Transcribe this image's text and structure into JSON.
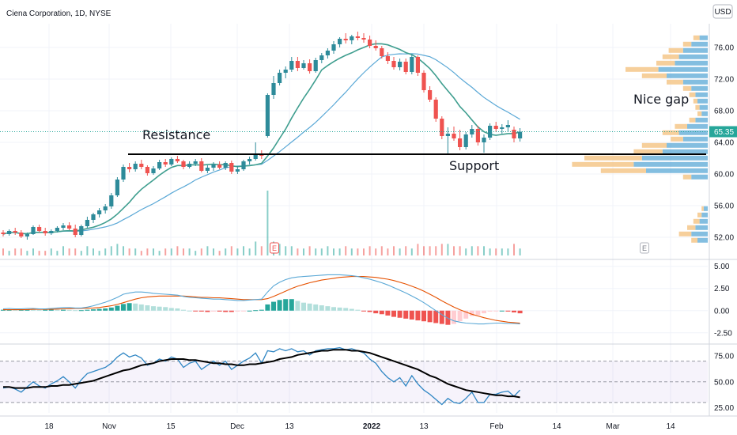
{
  "header": {
    "title": "Ciena Corporation, 1D, NYSE",
    "currency": "USD"
  },
  "colors": {
    "up": "#26a69a",
    "up_candle": "#2e8b9a",
    "down": "#ef5350",
    "ma_fast": "#3f9e8f",
    "ma_slow": "#5aa8d6",
    "macd_line": "#5aa8d6",
    "signal_line": "#e65100",
    "rsi_line": "#2f86c4",
    "rsi_ma": "#000000",
    "vp_up": "#5aa8d6",
    "vp_down": "#f5c78a",
    "grid": "#f0f3fa",
    "panel_sep": "#d1d4dc"
  },
  "annotations": {
    "resistance": "Resistance",
    "support": "Support",
    "nice_gap": "Nice gap"
  },
  "earnings_marker": "E",
  "date_axis": [
    "18",
    "Nov",
    "15",
    "Dec",
    "13",
    "2022",
    "13",
    "Feb",
    "14",
    "Mar",
    "14"
  ],
  "chart_data": [
    {
      "type": "candlestick",
      "title": "Ciena Corporation, 1D, NYSE",
      "ylabel": "USD",
      "ylim": [
        49.5,
        79
      ],
      "yticks": [
        "76.00",
        "72.00",
        "68.00",
        "64.00",
        "60.00",
        "56.00",
        "52.00"
      ],
      "last_price": "65.35",
      "support_resistance_level": 62.5,
      "volume_profile": true,
      "candles": [
        [
          52.6,
          52.9,
          52.1,
          52.4
        ],
        [
          52.4,
          53.0,
          52.2,
          52.8
        ],
        [
          52.8,
          53.2,
          52.3,
          52.6
        ],
        [
          52.6,
          52.9,
          51.9,
          52.1
        ],
        [
          52.1,
          52.6,
          51.7,
          52.4
        ],
        [
          52.4,
          53.5,
          52.3,
          53.3
        ],
        [
          53.3,
          53.6,
          52.6,
          52.8
        ],
        [
          52.8,
          53.2,
          52.2,
          52.5
        ],
        [
          52.5,
          53.0,
          52.3,
          52.8
        ],
        [
          52.8,
          53.4,
          52.6,
          53.2
        ],
        [
          53.2,
          53.8,
          52.9,
          53.5
        ],
        [
          53.5,
          53.9,
          52.9,
          53.1
        ],
        [
          53.1,
          53.6,
          52.0,
          52.3
        ],
        [
          52.3,
          53.6,
          52.1,
          53.4
        ],
        [
          53.4,
          54.6,
          53.2,
          54.2
        ],
        [
          54.2,
          55.1,
          53.8,
          54.9
        ],
        [
          54.9,
          55.7,
          54.5,
          55.4
        ],
        [
          55.4,
          56.2,
          55.0,
          55.9
        ],
        [
          55.9,
          57.6,
          55.6,
          57.3
        ],
        [
          57.3,
          59.6,
          57.1,
          59.3
        ],
        [
          59.3,
          61.2,
          59.0,
          60.9
        ],
        [
          60.9,
          61.4,
          60.2,
          60.6
        ],
        [
          60.6,
          61.6,
          60.3,
          61.3
        ],
        [
          61.3,
          61.8,
          60.6,
          60.9
        ],
        [
          60.9,
          61.1,
          59.8,
          60.1
        ],
        [
          60.1,
          61.0,
          59.9,
          60.7
        ],
        [
          60.7,
          61.8,
          60.5,
          61.5
        ],
        [
          61.5,
          61.9,
          60.9,
          61.2
        ],
        [
          61.2,
          62.1,
          61.0,
          61.9
        ],
        [
          61.9,
          62.3,
          61.4,
          61.6
        ],
        [
          61.6,
          61.8,
          60.6,
          60.9
        ],
        [
          60.9,
          61.6,
          60.7,
          61.3
        ],
        [
          61.3,
          61.9,
          61.0,
          61.6
        ],
        [
          61.6,
          62.0,
          60.2,
          60.4
        ],
        [
          60.4,
          61.1,
          60.1,
          60.8
        ],
        [
          60.8,
          61.5,
          60.4,
          61.2
        ],
        [
          61.2,
          61.6,
          60.6,
          60.8
        ],
        [
          60.8,
          61.6,
          60.5,
          61.4
        ],
        [
          61.4,
          61.7,
          60.0,
          60.3
        ],
        [
          60.3,
          61.0,
          60.0,
          60.6
        ],
        [
          60.6,
          61.8,
          60.4,
          61.6
        ],
        [
          61.6,
          62.2,
          61.2,
          61.9
        ],
        [
          61.9,
          64.0,
          61.7,
          62.6
        ],
        [
          62.6,
          63.0,
          61.9,
          62.3
        ],
        [
          64.8,
          70.2,
          64.6,
          70.0
        ],
        [
          70.0,
          72.4,
          69.5,
          71.5
        ],
        [
          71.5,
          73.2,
          71.2,
          72.8
        ],
        [
          72.8,
          73.6,
          72.1,
          73.2
        ],
        [
          73.2,
          74.8,
          72.9,
          74.3
        ],
        [
          74.3,
          74.8,
          73.0,
          73.4
        ],
        [
          73.4,
          74.4,
          73.2,
          74.0
        ],
        [
          74.0,
          74.5,
          72.7,
          73.0
        ],
        [
          73.0,
          74.7,
          72.8,
          74.4
        ],
        [
          74.4,
          75.3,
          74.0,
          75.0
        ],
        [
          75.0,
          75.9,
          74.6,
          75.6
        ],
        [
          75.6,
          76.8,
          75.2,
          76.4
        ],
        [
          76.4,
          77.3,
          76.0,
          77.1
        ],
        [
          77.1,
          77.8,
          76.5,
          76.9
        ],
        [
          76.9,
          77.6,
          76.4,
          77.4
        ],
        [
          77.4,
          78.0,
          76.9,
          77.2
        ],
        [
          77.2,
          77.8,
          76.6,
          77.0
        ],
        [
          77.0,
          77.5,
          75.9,
          76.2
        ],
        [
          76.2,
          76.9,
          75.6,
          75.9
        ],
        [
          75.9,
          76.2,
          74.6,
          74.9
        ],
        [
          74.9,
          75.4,
          73.9,
          74.3
        ],
        [
          74.3,
          74.8,
          73.2,
          73.5
        ],
        [
          73.5,
          74.6,
          73.1,
          74.2
        ],
        [
          74.2,
          74.6,
          72.6,
          72.9
        ],
        [
          72.9,
          75.1,
          72.6,
          74.8
        ],
        [
          74.8,
          75.0,
          72.4,
          72.8
        ],
        [
          72.8,
          73.1,
          70.3,
          70.6
        ],
        [
          70.6,
          71.1,
          69.1,
          69.4
        ],
        [
          69.4,
          69.7,
          66.6,
          67.0
        ],
        [
          67.0,
          67.3,
          64.4,
          64.8
        ],
        [
          64.8,
          65.9,
          62.4,
          65.1
        ],
        [
          65.1,
          66.0,
          64.2,
          64.5
        ],
        [
          64.5,
          65.6,
          63.0,
          63.4
        ],
        [
          63.4,
          65.3,
          63.1,
          65.0
        ],
        [
          65.0,
          66.2,
          64.6,
          65.7
        ],
        [
          65.7,
          66.1,
          63.6,
          64.0
        ],
        [
          64.0,
          65.0,
          62.7,
          64.6
        ],
        [
          64.6,
          66.4,
          64.3,
          66.1
        ],
        [
          66.1,
          66.6,
          65.3,
          65.7
        ],
        [
          65.7,
          66.3,
          65.1,
          65.9
        ],
        [
          65.9,
          66.8,
          65.3,
          66.2
        ],
        [
          65.6,
          66.0,
          64.0,
          64.5
        ],
        [
          64.5,
          65.8,
          64.1,
          65.35
        ]
      ],
      "volume": [
        3,
        2,
        3,
        3,
        2,
        3,
        2,
        2,
        3,
        2,
        4,
        3,
        3,
        2,
        4,
        3,
        2,
        3,
        4,
        5,
        4,
        3,
        3,
        2,
        3,
        3,
        2,
        3,
        3,
        4,
        3,
        3,
        2,
        3,
        4,
        3,
        2,
        3,
        4,
        3,
        4,
        3,
        6,
        4,
        28,
        6,
        5,
        4,
        4,
        3,
        3,
        4,
        3,
        3,
        4,
        3,
        3,
        4,
        3,
        3,
        3,
        4,
        3,
        4,
        3,
        4,
        3,
        4,
        3,
        5,
        4,
        4,
        4,
        5,
        5,
        4,
        4,
        3,
        4,
        4,
        4,
        3,
        3,
        3,
        3,
        5,
        3
      ],
      "volume_profile_bins": [
        {
          "price": 77.2,
          "up": 4,
          "down": 3
        },
        {
          "price": 76.4,
          "up": 8,
          "down": 4
        },
        {
          "price": 75.6,
          "up": 12,
          "down": 7
        },
        {
          "price": 74.8,
          "up": 14,
          "down": 8
        },
        {
          "price": 74.0,
          "up": 16,
          "down": 9
        },
        {
          "price": 73.2,
          "up": 24,
          "down": 16
        },
        {
          "price": 72.4,
          "up": 20,
          "down": 12
        },
        {
          "price": 71.6,
          "up": 12,
          "down": 8
        },
        {
          "price": 70.8,
          "up": 8,
          "down": 4
        },
        {
          "price": 70.0,
          "up": 6,
          "down": 3
        },
        {
          "price": 69.2,
          "up": 5,
          "down": 2
        },
        {
          "price": 68.4,
          "up": 4,
          "down": 2
        },
        {
          "price": 67.6,
          "up": 3,
          "down": 2
        },
        {
          "price": 66.8,
          "up": 6,
          "down": 3
        },
        {
          "price": 66.0,
          "up": 10,
          "down": 6
        },
        {
          "price": 65.2,
          "up": 14,
          "down": 8
        },
        {
          "price": 64.4,
          "up": 12,
          "down": 6
        },
        {
          "price": 63.6,
          "up": 20,
          "down": 12
        },
        {
          "price": 62.8,
          "up": 22,
          "down": 14
        },
        {
          "price": 62.0,
          "up": 32,
          "down": 28
        },
        {
          "price": 61.2,
          "up": 36,
          "down": 30
        },
        {
          "price": 60.4,
          "up": 30,
          "down": 22
        },
        {
          "price": 59.6,
          "up": 8,
          "down": 4
        },
        {
          "price": 55.6,
          "up": 2,
          "down": 1
        },
        {
          "price": 54.8,
          "up": 3,
          "down": 2
        },
        {
          "price": 54.0,
          "up": 4,
          "down": 3
        },
        {
          "price": 53.2,
          "up": 6,
          "down": 4
        },
        {
          "price": 52.4,
          "up": 8,
          "down": 6
        },
        {
          "price": 51.6,
          "up": 5,
          "down": 3
        }
      ]
    },
    {
      "type": "bar",
      "subtype": "macd_histogram",
      "ylim": [
        -3.5,
        5.6
      ],
      "yticks": [
        "5.00",
        "2.50",
        "0.00",
        "-2.50"
      ],
      "histogram": [
        0.1,
        0.15,
        0.1,
        0.1,
        0.12,
        0.1,
        0.08,
        0.1,
        0.12,
        0.1,
        0.1,
        0.08,
        0.05,
        0.05,
        0.1,
        0.15,
        0.2,
        0.25,
        0.35,
        0.55,
        0.75,
        0.85,
        0.8,
        0.7,
        0.6,
        0.5,
        0.45,
        0.4,
        0.3,
        0.25,
        0.1,
        0.0,
        -0.05,
        -0.1,
        -0.15,
        -0.1,
        -0.1,
        -0.15,
        -0.15,
        -0.1,
        -0.05,
        0.0,
        0.05,
        0.1,
        0.7,
        1.0,
        1.2,
        1.3,
        1.3,
        1.1,
        0.9,
        0.8,
        0.7,
        0.6,
        0.5,
        0.4,
        0.35,
        0.3,
        0.2,
        0.1,
        -0.05,
        -0.15,
        -0.3,
        -0.4,
        -0.55,
        -0.7,
        -0.8,
        -0.9,
        -1.0,
        -1.1,
        -1.2,
        -1.3,
        -1.4,
        -1.5,
        -1.6,
        -1.5,
        -1.2,
        -0.9,
        -0.6,
        -0.5,
        -0.3,
        -0.1,
        -0.05,
        0.0,
        -0.1,
        -0.2,
        -0.3
      ],
      "macd": [
        0.2,
        0.25,
        0.2,
        0.2,
        0.25,
        0.25,
        0.2,
        0.2,
        0.25,
        0.3,
        0.35,
        0.35,
        0.3,
        0.3,
        0.4,
        0.55,
        0.75,
        0.95,
        1.2,
        1.5,
        1.85,
        2.0,
        2.1,
        2.1,
        2.05,
        1.95,
        1.9,
        1.85,
        1.8,
        1.75,
        1.6,
        1.5,
        1.45,
        1.4,
        1.35,
        1.3,
        1.3,
        1.25,
        1.2,
        1.15,
        1.15,
        1.2,
        1.25,
        1.3,
        2.1,
        2.8,
        3.2,
        3.5,
        3.7,
        3.8,
        3.85,
        3.9,
        3.95,
        4.0,
        4.05,
        4.05,
        4.05,
        4.0,
        3.95,
        3.85,
        3.7,
        3.55,
        3.35,
        3.15,
        2.9,
        2.6,
        2.3,
        2.0,
        1.65,
        1.3,
        0.9,
        0.45,
        0.0,
        -0.45,
        -0.85,
        -1.15,
        -1.3,
        -1.4,
        -1.45,
        -1.5,
        -1.5,
        -1.45,
        -1.4,
        -1.4,
        -1.45,
        -1.45,
        -1.5
      ],
      "signal": [
        0.1,
        0.1,
        0.1,
        0.1,
        0.12,
        0.15,
        0.15,
        0.15,
        0.15,
        0.18,
        0.2,
        0.22,
        0.25,
        0.25,
        0.28,
        0.3,
        0.35,
        0.45,
        0.55,
        0.7,
        0.9,
        1.1,
        1.3,
        1.45,
        1.55,
        1.6,
        1.65,
        1.65,
        1.65,
        1.65,
        1.65,
        1.6,
        1.55,
        1.5,
        1.5,
        1.45,
        1.45,
        1.4,
        1.35,
        1.3,
        1.25,
        1.25,
        1.25,
        1.25,
        1.35,
        1.6,
        1.9,
        2.2,
        2.5,
        2.75,
        2.95,
        3.15,
        3.3,
        3.45,
        3.55,
        3.65,
        3.75,
        3.8,
        3.85,
        3.85,
        3.85,
        3.8,
        3.75,
        3.65,
        3.55,
        3.4,
        3.2,
        3.0,
        2.75,
        2.5,
        2.2,
        1.85,
        1.5,
        1.1,
        0.75,
        0.4,
        0.1,
        -0.15,
        -0.4,
        -0.6,
        -0.8,
        -0.95,
        -1.1,
        -1.2,
        -1.3,
        -1.35,
        -1.4
      ]
    },
    {
      "type": "line",
      "subtype": "rsi",
      "ylim": [
        20,
        85
      ],
      "yticks": [
        "75.00",
        "50.00",
        "25.00"
      ],
      "band": [
        30,
        70
      ],
      "midline": 50,
      "rsi": [
        44,
        45,
        43,
        40,
        45,
        50,
        46,
        44,
        48,
        51,
        55,
        50,
        44,
        52,
        58,
        60,
        62,
        64,
        68,
        74,
        78,
        74,
        76,
        73,
        66,
        68,
        72,
        70,
        74,
        72,
        64,
        68,
        70,
        62,
        66,
        70,
        66,
        70,
        62,
        66,
        70,
        73,
        78,
        68,
        80,
        79,
        82,
        80,
        82,
        79,
        80,
        76,
        80,
        81,
        82,
        82,
        83,
        81,
        82,
        80,
        78,
        72,
        68,
        60,
        54,
        50,
        54,
        46,
        56,
        48,
        42,
        38,
        33,
        28,
        34,
        30,
        29,
        34,
        40,
        30,
        30,
        38,
        38,
        40,
        41,
        36,
        42
      ],
      "rsi_ma": [
        45,
        45,
        44,
        44,
        44,
        45,
        45,
        45,
        46,
        46,
        47,
        47,
        48,
        49,
        50,
        51,
        53,
        55,
        57,
        59,
        61,
        62,
        64,
        66,
        67,
        68,
        70,
        71,
        72,
        72,
        72,
        71,
        71,
        70,
        69,
        68,
        68,
        67,
        67,
        66,
        66,
        67,
        67,
        68,
        69,
        70,
        72,
        73,
        74,
        76,
        77,
        78,
        79,
        80,
        80,
        81,
        81,
        81,
        80,
        80,
        79,
        78,
        76,
        74,
        72,
        70,
        68,
        66,
        64,
        62,
        59,
        56,
        54,
        51,
        48,
        46,
        44,
        42,
        41,
        40,
        39,
        38,
        37,
        37,
        36,
        36,
        35
      ]
    }
  ]
}
